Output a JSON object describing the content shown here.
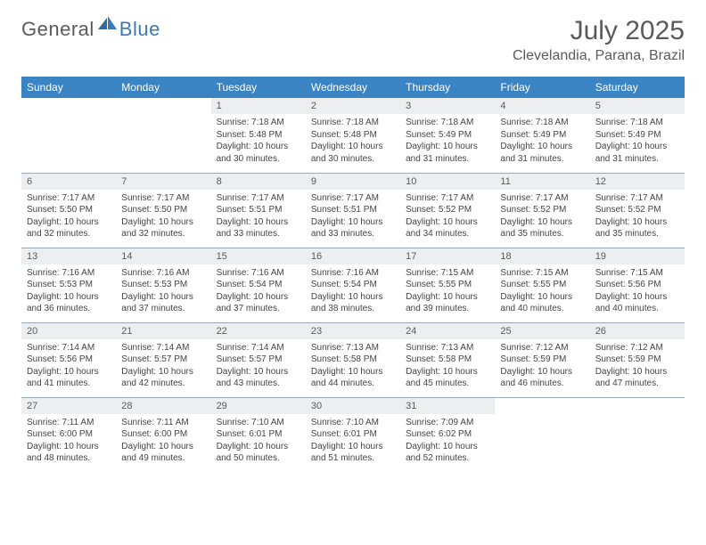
{
  "logo": {
    "text_general": "General",
    "text_blue": "Blue",
    "icon_color": "#3a7ab8"
  },
  "title": {
    "month": "July 2025",
    "location": "Clevelandia, Parana, Brazil"
  },
  "colors": {
    "header_bg": "#3b84c4",
    "header_text": "#ffffff",
    "daynum_bg": "#eceef0",
    "text": "#5a5a5a",
    "border": "#9aa8b5"
  },
  "weekdays": [
    "Sunday",
    "Monday",
    "Tuesday",
    "Wednesday",
    "Thursday",
    "Friday",
    "Saturday"
  ],
  "weeks": [
    [
      null,
      null,
      {
        "n": "1",
        "sr": "7:18 AM",
        "ss": "5:48 PM",
        "dl": "10 hours and 30 minutes."
      },
      {
        "n": "2",
        "sr": "7:18 AM",
        "ss": "5:48 PM",
        "dl": "10 hours and 30 minutes."
      },
      {
        "n": "3",
        "sr": "7:18 AM",
        "ss": "5:49 PM",
        "dl": "10 hours and 31 minutes."
      },
      {
        "n": "4",
        "sr": "7:18 AM",
        "ss": "5:49 PM",
        "dl": "10 hours and 31 minutes."
      },
      {
        "n": "5",
        "sr": "7:18 AM",
        "ss": "5:49 PM",
        "dl": "10 hours and 31 minutes."
      }
    ],
    [
      {
        "n": "6",
        "sr": "7:17 AM",
        "ss": "5:50 PM",
        "dl": "10 hours and 32 minutes."
      },
      {
        "n": "7",
        "sr": "7:17 AM",
        "ss": "5:50 PM",
        "dl": "10 hours and 32 minutes."
      },
      {
        "n": "8",
        "sr": "7:17 AM",
        "ss": "5:51 PM",
        "dl": "10 hours and 33 minutes."
      },
      {
        "n": "9",
        "sr": "7:17 AM",
        "ss": "5:51 PM",
        "dl": "10 hours and 33 minutes."
      },
      {
        "n": "10",
        "sr": "7:17 AM",
        "ss": "5:52 PM",
        "dl": "10 hours and 34 minutes."
      },
      {
        "n": "11",
        "sr": "7:17 AM",
        "ss": "5:52 PM",
        "dl": "10 hours and 35 minutes."
      },
      {
        "n": "12",
        "sr": "7:17 AM",
        "ss": "5:52 PM",
        "dl": "10 hours and 35 minutes."
      }
    ],
    [
      {
        "n": "13",
        "sr": "7:16 AM",
        "ss": "5:53 PM",
        "dl": "10 hours and 36 minutes."
      },
      {
        "n": "14",
        "sr": "7:16 AM",
        "ss": "5:53 PM",
        "dl": "10 hours and 37 minutes."
      },
      {
        "n": "15",
        "sr": "7:16 AM",
        "ss": "5:54 PM",
        "dl": "10 hours and 37 minutes."
      },
      {
        "n": "16",
        "sr": "7:16 AM",
        "ss": "5:54 PM",
        "dl": "10 hours and 38 minutes."
      },
      {
        "n": "17",
        "sr": "7:15 AM",
        "ss": "5:55 PM",
        "dl": "10 hours and 39 minutes."
      },
      {
        "n": "18",
        "sr": "7:15 AM",
        "ss": "5:55 PM",
        "dl": "10 hours and 40 minutes."
      },
      {
        "n": "19",
        "sr": "7:15 AM",
        "ss": "5:56 PM",
        "dl": "10 hours and 40 minutes."
      }
    ],
    [
      {
        "n": "20",
        "sr": "7:14 AM",
        "ss": "5:56 PM",
        "dl": "10 hours and 41 minutes."
      },
      {
        "n": "21",
        "sr": "7:14 AM",
        "ss": "5:57 PM",
        "dl": "10 hours and 42 minutes."
      },
      {
        "n": "22",
        "sr": "7:14 AM",
        "ss": "5:57 PM",
        "dl": "10 hours and 43 minutes."
      },
      {
        "n": "23",
        "sr": "7:13 AM",
        "ss": "5:58 PM",
        "dl": "10 hours and 44 minutes."
      },
      {
        "n": "24",
        "sr": "7:13 AM",
        "ss": "5:58 PM",
        "dl": "10 hours and 45 minutes."
      },
      {
        "n": "25",
        "sr": "7:12 AM",
        "ss": "5:59 PM",
        "dl": "10 hours and 46 minutes."
      },
      {
        "n": "26",
        "sr": "7:12 AM",
        "ss": "5:59 PM",
        "dl": "10 hours and 47 minutes."
      }
    ],
    [
      {
        "n": "27",
        "sr": "7:11 AM",
        "ss": "6:00 PM",
        "dl": "10 hours and 48 minutes."
      },
      {
        "n": "28",
        "sr": "7:11 AM",
        "ss": "6:00 PM",
        "dl": "10 hours and 49 minutes."
      },
      {
        "n": "29",
        "sr": "7:10 AM",
        "ss": "6:01 PM",
        "dl": "10 hours and 50 minutes."
      },
      {
        "n": "30",
        "sr": "7:10 AM",
        "ss": "6:01 PM",
        "dl": "10 hours and 51 minutes."
      },
      {
        "n": "31",
        "sr": "7:09 AM",
        "ss": "6:02 PM",
        "dl": "10 hours and 52 minutes."
      },
      null,
      null
    ]
  ],
  "labels": {
    "sunrise": "Sunrise:",
    "sunset": "Sunset:",
    "daylight": "Daylight:"
  }
}
